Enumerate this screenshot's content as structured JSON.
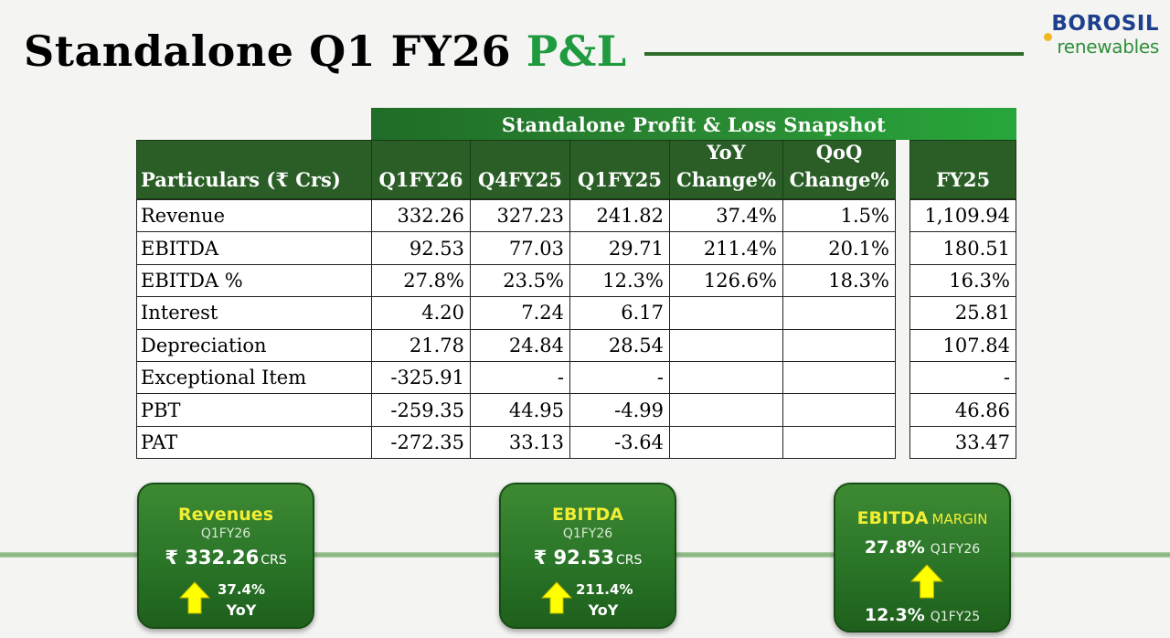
{
  "title": {
    "main": "Standalone Q1 FY26",
    "accent": "P&L"
  },
  "logo": {
    "brand": "BOROSIL",
    "sub": "renewables"
  },
  "table": {
    "caption": "Standalone Profit & Loss Snapshot",
    "headers": {
      "particulars": "Particulars (₹ Crs)",
      "q1fy26": "Q1FY26",
      "q4fy25": "Q4FY25",
      "q1fy25": "Q1FY25",
      "yoy_1": "YoY",
      "yoy_2": "Change%",
      "qoq_1": "QoQ",
      "qoq_2": "Change%",
      "fy25": "FY25"
    },
    "rows": [
      {
        "label": "Revenue",
        "q1fy26": "332.26",
        "q4fy25": "327.23",
        "q1fy25": "241.82",
        "yoy": "37.4%",
        "qoq": "1.5%",
        "fy25": "1,109.94"
      },
      {
        "label": "EBITDA",
        "q1fy26": "92.53",
        "q4fy25": "77.03",
        "q1fy25": "29.71",
        "yoy": "211.4%",
        "qoq": "20.1%",
        "fy25": "180.51"
      },
      {
        "label": "EBITDA %",
        "q1fy26": "27.8%",
        "q4fy25": "23.5%",
        "q1fy25": "12.3%",
        "yoy": "126.6%",
        "qoq": "18.3%",
        "fy25": "16.3%"
      },
      {
        "label": "Interest",
        "q1fy26": "4.20",
        "q4fy25": "7.24",
        "q1fy25": "6.17",
        "yoy": "",
        "qoq": "",
        "fy25": "25.81"
      },
      {
        "label": "Depreciation",
        "q1fy26": "21.78",
        "q4fy25": "24.84",
        "q1fy25": "28.54",
        "yoy": "",
        "qoq": "",
        "fy25": "107.84"
      },
      {
        "label": "Exceptional Item",
        "q1fy26": "-325.91",
        "q4fy25": "-",
        "q1fy25": "-",
        "yoy": "",
        "qoq": "",
        "fy25": "-"
      },
      {
        "label": "PBT",
        "q1fy26": "-259.35",
        "q4fy25": "44.95",
        "q1fy25": "-4.99",
        "yoy": "",
        "qoq": "",
        "fy25": "46.86"
      },
      {
        "label": "PAT",
        "q1fy26": "-272.35",
        "q4fy25": "33.13",
        "q1fy25": "-3.64",
        "yoy": "",
        "qoq": "",
        "fy25": "33.47"
      }
    ]
  },
  "cards": {
    "revenues": {
      "title": "Revenues",
      "period": "Q1FY26",
      "value": "₹ 332.26",
      "unit": "CRS",
      "change": "37.4%",
      "change_label": "YoY",
      "icon": "up-arrow-icon"
    },
    "ebitda": {
      "title": "EBITDA",
      "period": "Q1FY26",
      "value": "₹ 92.53",
      "unit": "CRS",
      "change": "211.4%",
      "change_label": "YoY",
      "icon": "up-arrow-icon"
    },
    "margin": {
      "title": "EBITDA",
      "title_suffix": "MARGIN",
      "current_value": "27.8%",
      "current_period": "Q1FY26",
      "prior_value": "12.3%",
      "prior_period": "Q1FY25",
      "icon": "up-arrow-icon"
    }
  },
  "colors": {
    "accent_green": "#1f9a3f",
    "header_green": "#2a5e26",
    "brand_blue": "#1d3f8c",
    "highlight_yellow": "#f1ee35",
    "arrow_yellow": "#ffff00"
  }
}
